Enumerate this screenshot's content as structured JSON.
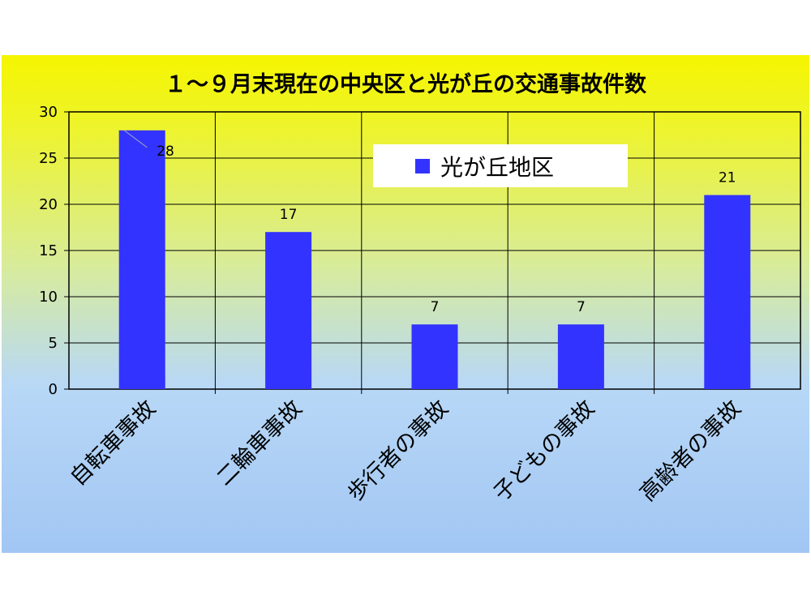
{
  "chart_data": {
    "type": "bar",
    "title": "１～９月末現在の中央区と光が丘の交通事故件数",
    "categories": [
      "自転車事故",
      "二輪車事故",
      "歩行者の事故",
      "子どもの事故",
      "高齢者の事故"
    ],
    "series": [
      {
        "name": "光が丘地区",
        "values": [
          28,
          17,
          7,
          7,
          21
        ],
        "color": "#3333ff"
      }
    ],
    "data_labels": [
      "28",
      "17",
      "7",
      "7",
      "21"
    ],
    "yticks": [
      "0",
      "5",
      "10",
      "15",
      "20",
      "25",
      "30"
    ],
    "ylim": [
      0,
      30
    ],
    "ytick_step": 5,
    "grid": true,
    "legend_position": "top-center",
    "xlabel": "",
    "ylabel": ""
  }
}
